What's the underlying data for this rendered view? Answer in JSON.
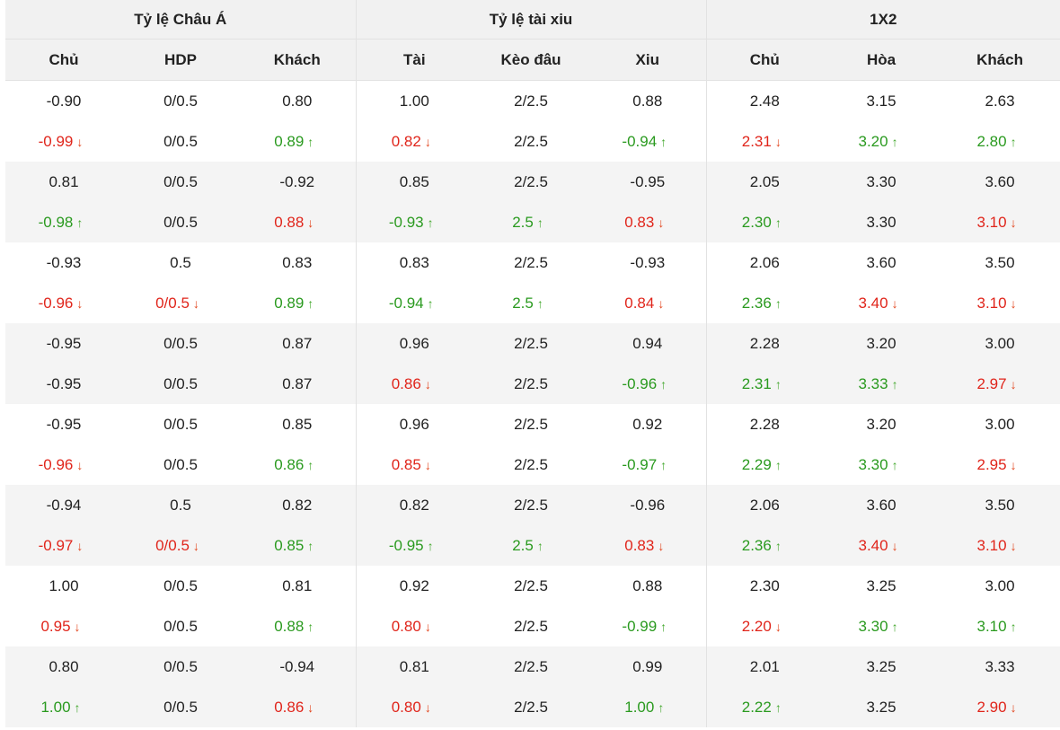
{
  "headers": {
    "groups": [
      "Tỷ lệ Châu Á",
      "Tỷ lệ tài xiu",
      "1X2"
    ],
    "columns": [
      "Chủ",
      "HDP",
      "Khách",
      "Tài",
      "Kèo đâu",
      "Xiu",
      "Chủ",
      "Hòa",
      "Khách"
    ]
  },
  "colors": {
    "down": "#e0251b",
    "up": "#2a9a1f",
    "header_bg": "#f1f1f1",
    "row_shade": "#f4f4f4"
  },
  "icons": {
    "up": "arrow-up-icon",
    "down": "arrow-down-icon"
  },
  "groups": [
    {
      "opening": [
        "-0.90",
        "0/0.5",
        "0.80",
        "1.00",
        "2/2.5",
        "0.88",
        "2.48",
        "3.15",
        "2.63"
      ],
      "current": [
        {
          "v": "-0.99",
          "t": "down"
        },
        {
          "v": "0/0.5",
          "t": ""
        },
        {
          "v": "0.89",
          "t": "up"
        },
        {
          "v": "0.82",
          "t": "down"
        },
        {
          "v": "2/2.5",
          "t": ""
        },
        {
          "v": "-0.94",
          "t": "up"
        },
        {
          "v": "2.31",
          "t": "down"
        },
        {
          "v": "3.20",
          "t": "up"
        },
        {
          "v": "2.80",
          "t": "up"
        }
      ]
    },
    {
      "opening": [
        "0.81",
        "0/0.5",
        "-0.92",
        "0.85",
        "2/2.5",
        "-0.95",
        "2.05",
        "3.30",
        "3.60"
      ],
      "current": [
        {
          "v": "-0.98",
          "t": "up"
        },
        {
          "v": "0/0.5",
          "t": ""
        },
        {
          "v": "0.88",
          "t": "down"
        },
        {
          "v": "-0.93",
          "t": "up"
        },
        {
          "v": "2.5",
          "t": "up"
        },
        {
          "v": "0.83",
          "t": "down"
        },
        {
          "v": "2.30",
          "t": "up"
        },
        {
          "v": "3.30",
          "t": ""
        },
        {
          "v": "3.10",
          "t": "down"
        }
      ]
    },
    {
      "opening": [
        "-0.93",
        "0.5",
        "0.83",
        "0.83",
        "2/2.5",
        "-0.93",
        "2.06",
        "3.60",
        "3.50"
      ],
      "current": [
        {
          "v": "-0.96",
          "t": "down"
        },
        {
          "v": "0/0.5",
          "t": "down"
        },
        {
          "v": "0.89",
          "t": "up"
        },
        {
          "v": "-0.94",
          "t": "up"
        },
        {
          "v": "2.5",
          "t": "up"
        },
        {
          "v": "0.84",
          "t": "down"
        },
        {
          "v": "2.36",
          "t": "up"
        },
        {
          "v": "3.40",
          "t": "down"
        },
        {
          "v": "3.10",
          "t": "down"
        }
      ]
    },
    {
      "opening": [
        "-0.95",
        "0/0.5",
        "0.87",
        "0.96",
        "2/2.5",
        "0.94",
        "2.28",
        "3.20",
        "3.00"
      ],
      "current": [
        {
          "v": "-0.95",
          "t": ""
        },
        {
          "v": "0/0.5",
          "t": ""
        },
        {
          "v": "0.87",
          "t": ""
        },
        {
          "v": "0.86",
          "t": "down"
        },
        {
          "v": "2/2.5",
          "t": ""
        },
        {
          "v": "-0.96",
          "t": "up"
        },
        {
          "v": "2.31",
          "t": "up"
        },
        {
          "v": "3.33",
          "t": "up"
        },
        {
          "v": "2.97",
          "t": "down"
        }
      ]
    },
    {
      "opening": [
        "-0.95",
        "0/0.5",
        "0.85",
        "0.96",
        "2/2.5",
        "0.92",
        "2.28",
        "3.20",
        "3.00"
      ],
      "current": [
        {
          "v": "-0.96",
          "t": "down"
        },
        {
          "v": "0/0.5",
          "t": ""
        },
        {
          "v": "0.86",
          "t": "up"
        },
        {
          "v": "0.85",
          "t": "down"
        },
        {
          "v": "2/2.5",
          "t": ""
        },
        {
          "v": "-0.97",
          "t": "up"
        },
        {
          "v": "2.29",
          "t": "up"
        },
        {
          "v": "3.30",
          "t": "up"
        },
        {
          "v": "2.95",
          "t": "down"
        }
      ]
    },
    {
      "opening": [
        "-0.94",
        "0.5",
        "0.82",
        "0.82",
        "2/2.5",
        "-0.96",
        "2.06",
        "3.60",
        "3.50"
      ],
      "current": [
        {
          "v": "-0.97",
          "t": "down"
        },
        {
          "v": "0/0.5",
          "t": "down"
        },
        {
          "v": "0.85",
          "t": "up"
        },
        {
          "v": "-0.95",
          "t": "up"
        },
        {
          "v": "2.5",
          "t": "up"
        },
        {
          "v": "0.83",
          "t": "down"
        },
        {
          "v": "2.36",
          "t": "up"
        },
        {
          "v": "3.40",
          "t": "down"
        },
        {
          "v": "3.10",
          "t": "down"
        }
      ]
    },
    {
      "opening": [
        "1.00",
        "0/0.5",
        "0.81",
        "0.92",
        "2/2.5",
        "0.88",
        "2.30",
        "3.25",
        "3.00"
      ],
      "current": [
        {
          "v": "0.95",
          "t": "down"
        },
        {
          "v": "0/0.5",
          "t": ""
        },
        {
          "v": "0.88",
          "t": "up"
        },
        {
          "v": "0.80",
          "t": "down"
        },
        {
          "v": "2/2.5",
          "t": ""
        },
        {
          "v": "-0.99",
          "t": "up"
        },
        {
          "v": "2.20",
          "t": "down"
        },
        {
          "v": "3.30",
          "t": "up"
        },
        {
          "v": "3.10",
          "t": "up"
        }
      ]
    },
    {
      "opening": [
        "0.80",
        "0/0.5",
        "-0.94",
        "0.81",
        "2/2.5",
        "0.99",
        "2.01",
        "3.25",
        "3.33"
      ],
      "current": [
        {
          "v": "1.00",
          "t": "up"
        },
        {
          "v": "0/0.5",
          "t": ""
        },
        {
          "v": "0.86",
          "t": "down"
        },
        {
          "v": "0.80",
          "t": "down"
        },
        {
          "v": "2/2.5",
          "t": ""
        },
        {
          "v": "1.00",
          "t": "up"
        },
        {
          "v": "2.22",
          "t": "up"
        },
        {
          "v": "3.25",
          "t": ""
        },
        {
          "v": "2.90",
          "t": "down"
        }
      ]
    }
  ]
}
